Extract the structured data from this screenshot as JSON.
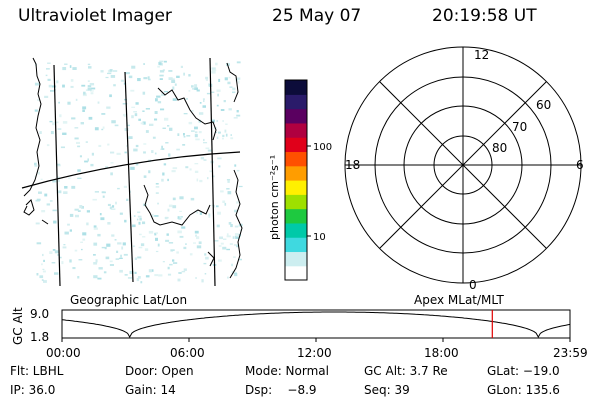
{
  "header": {
    "instrument": "Ultraviolet Imager",
    "date": "25 May 07",
    "time": "20:19:58 UT"
  },
  "colorbar": {
    "label": "photon cm⁻²s⁻¹",
    "ticks": [
      "100",
      "10"
    ],
    "colors": [
      "#ffffff",
      "#cdeef0",
      "#3fd9e0",
      "#00c9a8",
      "#1ec940",
      "#9ee000",
      "#fff000",
      "#ff9d00",
      "#ff5000",
      "#e0001a",
      "#b00040",
      "#5a0060",
      "#2a1b6a",
      "#0c0c3a"
    ]
  },
  "polar_plot": {
    "mlt_labels": {
      "top": "12",
      "left": "18",
      "right": "6",
      "bottom": "0"
    },
    "lat_labels": [
      "60",
      "70",
      "80"
    ]
  },
  "map_captions": {
    "left": "Geographic Lat/Lon",
    "right": "Apex MLat/MLT"
  },
  "altitude_plot": {
    "ylabel": "GC Alt",
    "y_ticks": [
      "9.0",
      "1.8"
    ],
    "x_ticks": [
      "00:00",
      "06:00",
      "12:00",
      "18:00",
      "23:59"
    ],
    "current_marker_hours": 20.33,
    "marker_color": "#e00000"
  },
  "footer": {
    "filter": "Flt: LBHL",
    "door": "Door: Open",
    "mode": "Mode: Normal",
    "gc_alt": "GC Alt: 3.7 Re",
    "glat": "GLat: −19.0",
    "ip": "IP: 36.0",
    "gain": "Gain: 14",
    "dsp": "Dsp:    −8.9",
    "seq": "Seq: 39",
    "glon": "GLon: 135.6"
  }
}
